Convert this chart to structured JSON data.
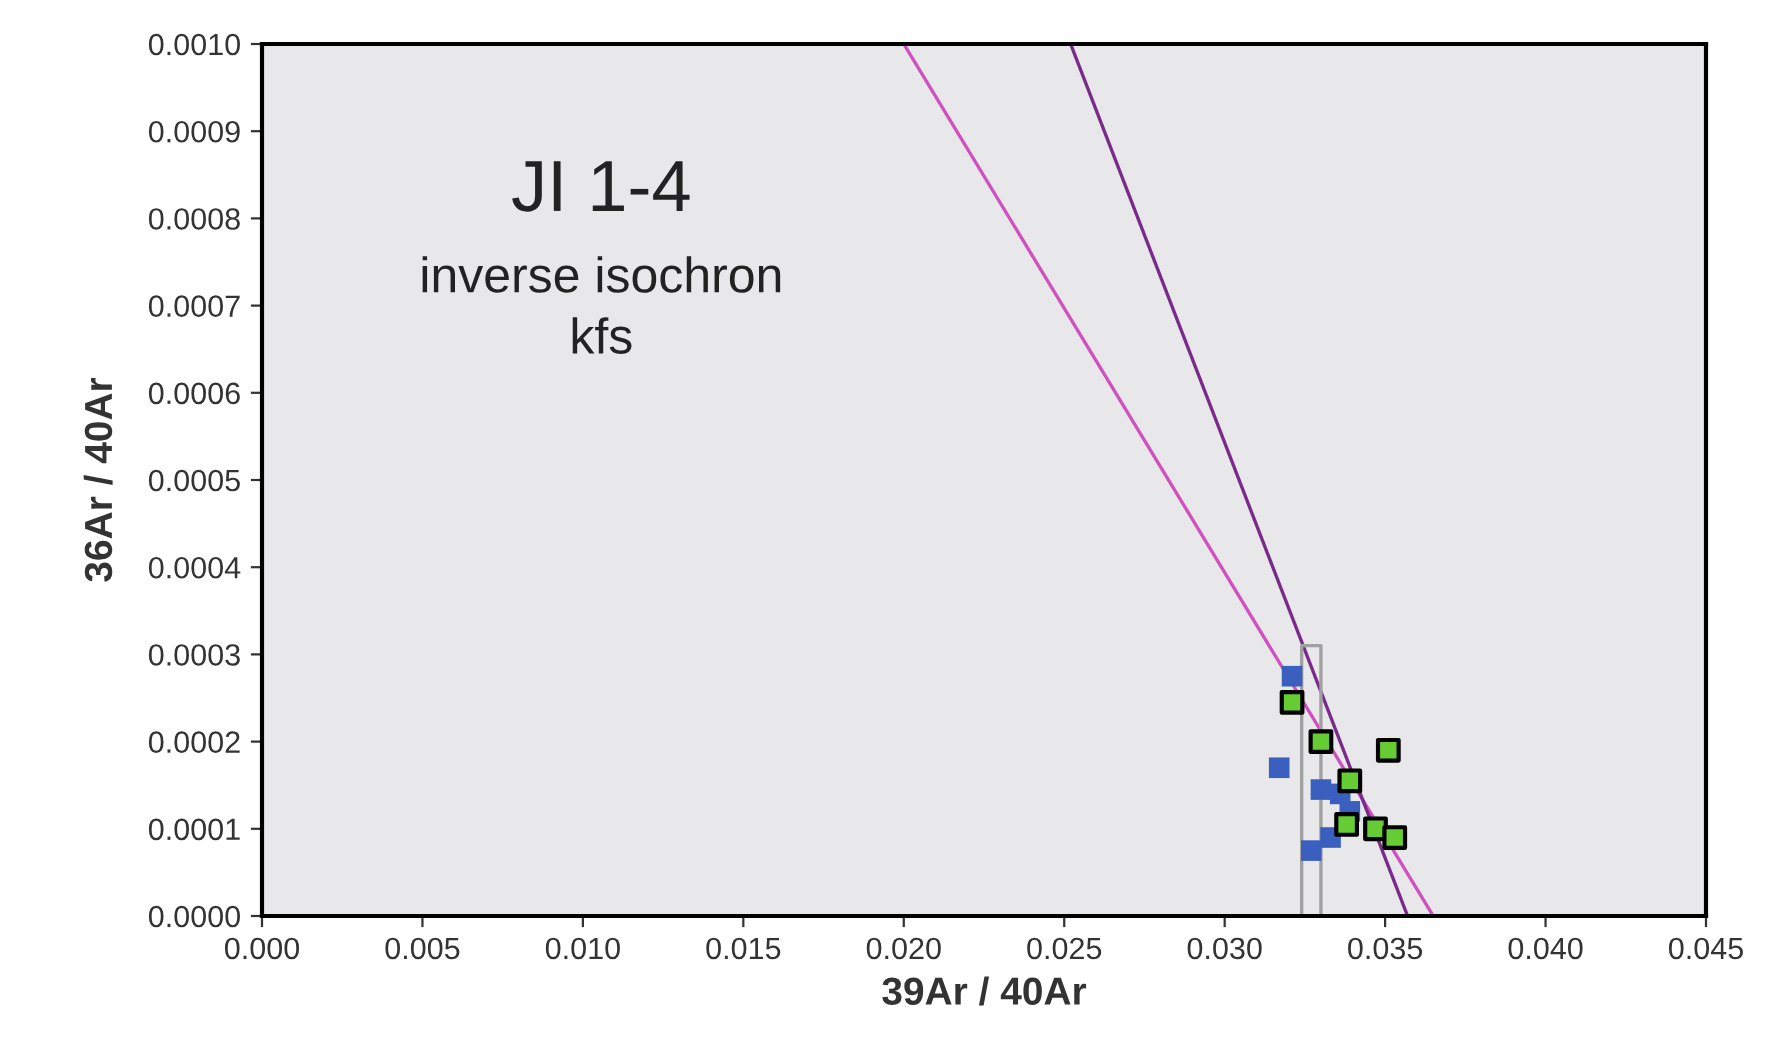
{
  "chart_data": {
    "type": "scatter",
    "xlabel": "39Ar / 40Ar",
    "ylabel": "36Ar / 40Ar",
    "annotations": [
      "JI 1-4",
      "inverse isochron",
      "kfs"
    ],
    "xlim": [
      0,
      0.045
    ],
    "ylim": [
      0,
      0.001
    ],
    "xticks": [
      {
        "value": 0,
        "label": "0.000"
      },
      {
        "value": 0.005,
        "label": "0.005"
      },
      {
        "value": 0.01,
        "label": "0.010"
      },
      {
        "value": 0.015,
        "label": "0.015"
      },
      {
        "value": 0.02,
        "label": "0.020"
      },
      {
        "value": 0.025,
        "label": "0.025"
      },
      {
        "value": 0.03,
        "label": "0.030"
      },
      {
        "value": 0.035,
        "label": "0.035"
      },
      {
        "value": 0.04,
        "label": "0.040"
      },
      {
        "value": 0.045,
        "label": "0.045"
      }
    ],
    "yticks": [
      {
        "value": 0,
        "label": "0.0000"
      },
      {
        "value": 0.0001,
        "label": "0.0001"
      },
      {
        "value": 0.0002,
        "label": "0.0002"
      },
      {
        "value": 0.0003,
        "label": "0.0003"
      },
      {
        "value": 0.0004,
        "label": "0.0004"
      },
      {
        "value": 0.0005,
        "label": "0.0005"
      },
      {
        "value": 0.0006,
        "label": "0.0006"
      },
      {
        "value": 0.0007,
        "label": "0.0007"
      },
      {
        "value": 0.0008,
        "label": "0.0008"
      },
      {
        "value": 0.0009,
        "label": "0.0009"
      },
      {
        "value": 0.001,
        "label": "0.0010"
      }
    ],
    "grid": false,
    "legend": false,
    "series": [
      {
        "type": "line",
        "color": "#d050c0",
        "x": [
          0.02,
          0.0365
        ],
        "values": [
          0.001,
          0
        ]
      },
      {
        "type": "line",
        "color": "#7a2a8a",
        "x": [
          0.0252,
          0.0357
        ],
        "values": [
          0.001,
          0
        ]
      },
      {
        "type": "line",
        "color": "#a0a0a0",
        "x": [
          0.0324,
          0.0324,
          0.033,
          0.033
        ],
        "values": [
          0,
          0.00031,
          0.00031,
          0
        ]
      },
      {
        "marker": "square",
        "color": "#3a5fbf",
        "x": [
          0.0321,
          0.0317,
          0.033,
          0.0336,
          0.0339,
          0.0333,
          0.0327
        ],
        "values": [
          0.000275,
          0.00017,
          0.000145,
          0.00014,
          0.00012,
          9e-05,
          7.5e-05
        ]
      },
      {
        "marker": "square",
        "color": "#66cc33",
        "x": [
          0.0321,
          0.033,
          0.0351,
          0.0339,
          0.0338,
          0.0347,
          0.0353
        ],
        "values": [
          0.000245,
          0.0002,
          0.00019,
          0.000155,
          0.000105,
          0.0001,
          9e-05
        ]
      }
    ]
  }
}
